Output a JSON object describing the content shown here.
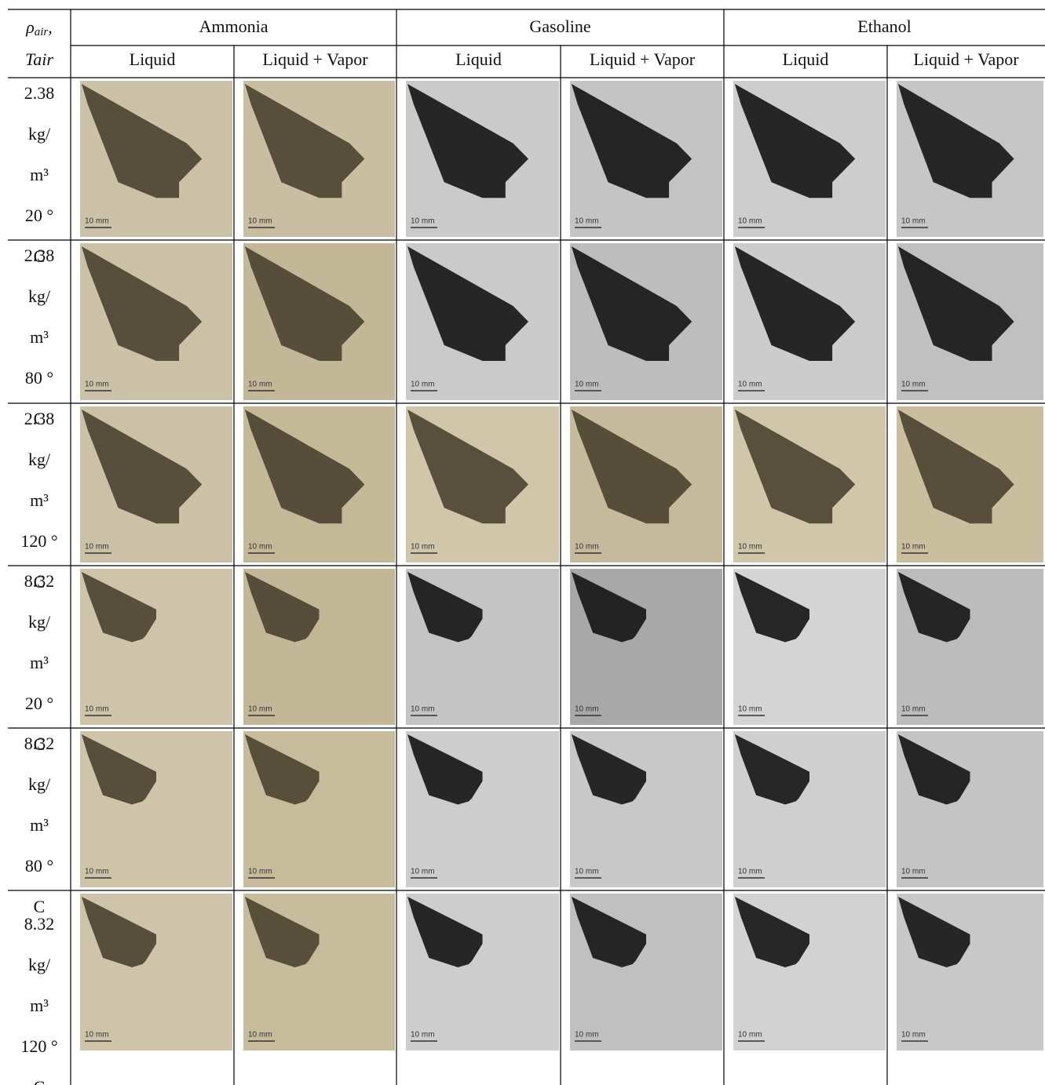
{
  "header": {
    "corner": {
      "symbol": "ρ",
      "subscript": "air",
      "suffix": ",",
      "second": "Tair"
    },
    "fuels": [
      "Ammonia",
      "Gasoline",
      "Ethanol"
    ],
    "subcolumns": [
      "Liquid",
      "Liquid + Vapor",
      "Liquid",
      "Liquid + Vapor",
      "Liquid",
      "Liquid + Vapor"
    ]
  },
  "rows": [
    {
      "label": [
        "2.38",
        "kg/",
        "m³",
        "20 °",
        "C"
      ],
      "cells": [
        {
          "scale": "10 mm",
          "tone": "#cbc1a6"
        },
        {
          "scale": "10 mm",
          "tone": "#c9bea2"
        },
        {
          "scale": "10 mm",
          "tone": "#cacaca"
        },
        {
          "scale": "10 mm",
          "tone": "#c4c4c4"
        },
        {
          "scale": "10 mm",
          "tone": "#cdcdcd"
        },
        {
          "scale": "10 mm",
          "tone": "#c6c6c6"
        }
      ]
    },
    {
      "label": [
        "2.38",
        "kg/",
        "m³",
        "80 °",
        "C"
      ],
      "cells": [
        {
          "scale": "10 mm",
          "tone": "#cbc1a6"
        },
        {
          "scale": "10 mm",
          "tone": "#c2b898"
        },
        {
          "scale": "10 mm",
          "tone": "#cacaca"
        },
        {
          "scale": "10 mm",
          "tone": "#bdbdbd"
        },
        {
          "scale": "10 mm",
          "tone": "#cccccc"
        },
        {
          "scale": "10 mm",
          "tone": "#c0c0c0"
        }
      ]
    },
    {
      "label": [
        "2.38",
        "kg/",
        "m³",
        "120 °",
        "C"
      ],
      "cells": [
        {
          "scale": "10 mm",
          "tone": "#cbc1a6"
        },
        {
          "scale": "10 mm",
          "tone": "#c3b997"
        },
        {
          "scale": "10 mm",
          "tone": "#d0c6aa"
        },
        {
          "scale": "10 mm",
          "tone": "#c5bb9c"
        },
        {
          "scale": "10 mm",
          "tone": "#d0c6aa"
        },
        {
          "scale": "10 mm",
          "tone": "#c9bf9f"
        }
      ]
    },
    {
      "label": [
        "8.32",
        "kg/",
        "m³",
        "20 °",
        "C"
      ],
      "cells": [
        {
          "scale": "10 mm",
          "tone": "#cec4aa"
        },
        {
          "scale": "10 mm",
          "tone": "#c2b898"
        },
        {
          "scale": "10 mm",
          "tone": "#c4c4c4"
        },
        {
          "scale": "10 mm",
          "tone": "#a8a8a8"
        },
        {
          "scale": "10 mm",
          "tone": "#d4d4d4"
        },
        {
          "scale": "10 mm",
          "tone": "#bcbcbc"
        }
      ]
    },
    {
      "label": [
        "8.32",
        "kg/",
        "m³",
        "80 °",
        "C"
      ],
      "cells": [
        {
          "scale": "10 mm",
          "tone": "#cec4aa"
        },
        {
          "scale": "10 mm",
          "tone": "#c6bc9c"
        },
        {
          "scale": "10 mm",
          "tone": "#cdcdcd"
        },
        {
          "scale": "10 mm",
          "tone": "#c8c8c8"
        },
        {
          "scale": "10 mm",
          "tone": "#cfcfcf"
        },
        {
          "scale": "10 mm",
          "tone": "#c4c4c4"
        }
      ]
    },
    {
      "label": [
        "8.32",
        "kg/",
        "m³",
        "120 °",
        "C"
      ],
      "cells": [
        {
          "scale": "10 mm",
          "tone": "#cec4aa"
        },
        {
          "scale": "10 mm",
          "tone": "#c6bc9c"
        },
        {
          "scale": "10 mm",
          "tone": "#cdcdcd"
        },
        {
          "scale": "10 mm",
          "tone": "#c0c0c0"
        },
        {
          "scale": "10 mm",
          "tone": "#d2d2d2"
        },
        {
          "scale": "10 mm",
          "tone": "#c8c8c8"
        }
      ]
    }
  ]
}
